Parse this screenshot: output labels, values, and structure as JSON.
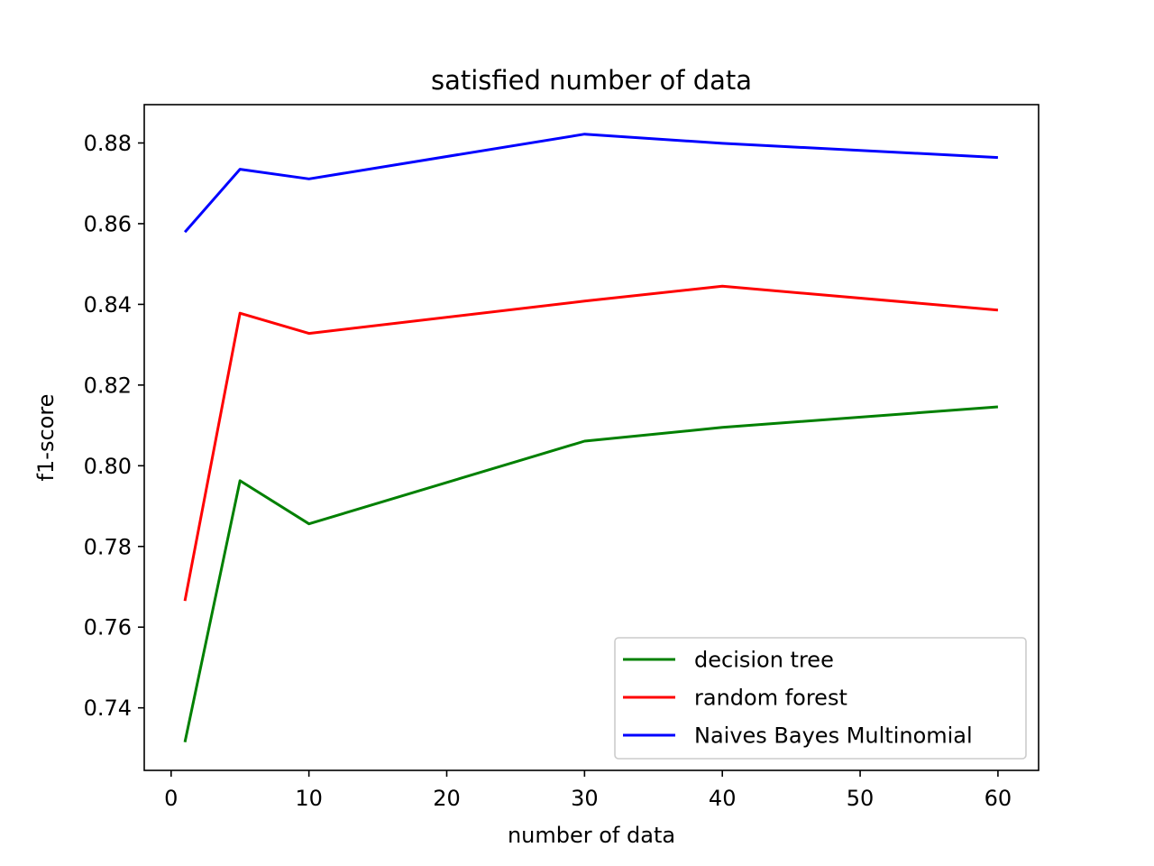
{
  "chart_data": {
    "type": "line",
    "title": "satisfied number of data",
    "xlabel": "number of data",
    "ylabel": "f1-score",
    "x": [
      1,
      5,
      10,
      30,
      40,
      60
    ],
    "xlim": [
      -1.95,
      62.95
    ],
    "ylim": [
      0.7245,
      0.8895
    ],
    "xticks": [
      0,
      10,
      20,
      30,
      40,
      50,
      60
    ],
    "yticks": [
      0.74,
      0.76,
      0.78,
      0.8,
      0.82,
      0.84,
      0.86,
      0.88
    ],
    "ytick_labels": [
      "0.74",
      "0.76",
      "0.78",
      "0.80",
      "0.82",
      "0.84",
      "0.86",
      "0.88"
    ],
    "grid": false,
    "legend_position": "lower-right",
    "series": [
      {
        "name": "decision tree",
        "color": "#008000",
        "values": [
          0.7315,
          0.7963,
          0.7856,
          0.8061,
          0.8095,
          0.8146
        ]
      },
      {
        "name": "random forest",
        "color": "#ff0000",
        "values": [
          0.7665,
          0.8378,
          0.8328,
          0.8408,
          0.8445,
          0.8386
        ]
      },
      {
        "name": "Naives Bayes Multinomial",
        "color": "#0000ff",
        "values": [
          0.8579,
          0.8735,
          0.8711,
          0.8822,
          0.8799,
          0.8764
        ]
      }
    ]
  }
}
